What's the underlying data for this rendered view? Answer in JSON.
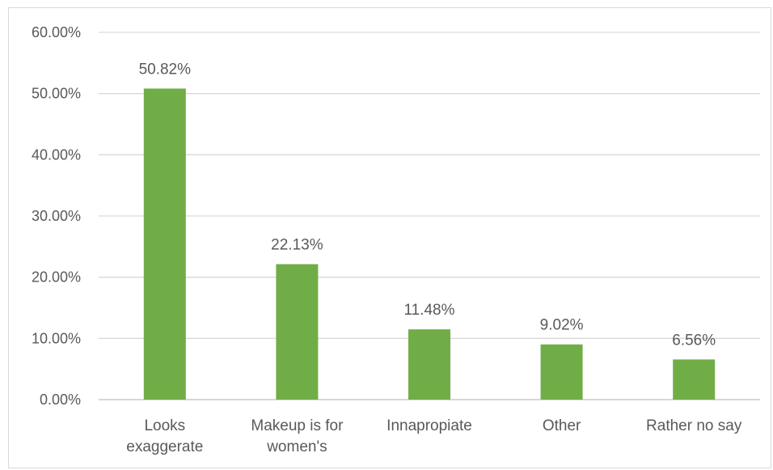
{
  "chart_data": {
    "type": "bar",
    "categories": [
      [
        "Looks",
        "exaggerate"
      ],
      [
        "Makeup is for",
        "women's"
      ],
      [
        "Innapropiate"
      ],
      [
        "Other"
      ],
      [
        "Rather no say"
      ]
    ],
    "values": [
      50.82,
      22.13,
      11.48,
      9.02,
      6.56
    ],
    "data_labels": [
      "50.82%",
      "22.13%",
      "11.48%",
      "9.02%",
      "6.56%"
    ],
    "y_ticks": [
      {
        "value": 0,
        "label": "0.00%"
      },
      {
        "value": 10,
        "label": "10.00%"
      },
      {
        "value": 20,
        "label": "20.00%"
      },
      {
        "value": 30,
        "label": "30.00%"
      },
      {
        "value": 40,
        "label": "40.00%"
      },
      {
        "value": 50,
        "label": "50.00%"
      },
      {
        "value": 60,
        "label": "60.00%"
      }
    ],
    "ylim": [
      0,
      60
    ],
    "title": "",
    "xlabel": "",
    "ylabel": "",
    "grid": true,
    "legend": "none",
    "colors": {
      "bar": "#70ad47",
      "gridline": "#d9d9d9",
      "axis": "#bfbfbf",
      "text": "#595959"
    }
  }
}
